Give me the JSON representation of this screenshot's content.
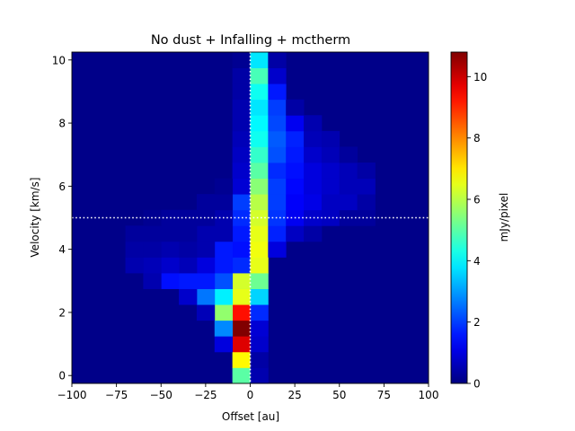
{
  "chart_data": {
    "type": "heatmap",
    "title": "No dust + Infalling + mctherm",
    "xlabel": "Offset [au]",
    "ylabel": "Velocity [km/s]",
    "colorbar_label": "mJy/pixel",
    "colormap": "jet",
    "xlim": [
      -100,
      100
    ],
    "ylim": [
      -0.25,
      10.25
    ],
    "x_ticks": [
      -100,
      -75,
      -50,
      -25,
      0,
      25,
      50,
      75,
      100
    ],
    "x_tick_labels": [
      "−100",
      "−75",
      "−50",
      "−25",
      "0",
      "25",
      "50",
      "75",
      "100"
    ],
    "y_ticks": [
      0,
      2,
      4,
      6,
      8,
      10
    ],
    "y_tick_labels": [
      "0",
      "2",
      "4",
      "6",
      "8",
      "10"
    ],
    "colorbar_ticks": [
      0,
      2,
      4,
      6,
      8,
      10
    ],
    "colorbar_tick_labels": [
      "0",
      "2",
      "4",
      "6",
      "8",
      "10"
    ],
    "vmin": 0,
    "vmax": 10.8,
    "x_bin_edges_au": [
      -100,
      100
    ],
    "x_bin_count": 20,
    "velocity_bin_start": -0.25,
    "velocity_bin_width": 0.5,
    "velocity_bin_count": 21,
    "background_value": 0.1,
    "reference_lines": {
      "systemic_velocity": 5.0,
      "zero_offset": 0
    },
    "cells_note": "each cell: x offset bin center [au], velocity bin center [km/s], intensity [mJy/pixel]",
    "cells": [
      [
        -5,
        0,
        5.0
      ],
      [
        5,
        0,
        0.5
      ],
      [
        -5,
        0.5,
        6.8
      ],
      [
        5,
        0.5,
        0.4
      ],
      [
        -5,
        1,
        9.8
      ],
      [
        -15,
        1,
        1.0
      ],
      [
        5,
        1,
        0.8
      ],
      [
        -5,
        1.5,
        10.8
      ],
      [
        -15,
        1.5,
        2.8
      ],
      [
        5,
        1.5,
        0.9
      ],
      [
        -5,
        2,
        9.3
      ],
      [
        -15,
        2,
        5.6
      ],
      [
        -25,
        2,
        0.6
      ],
      [
        5,
        2,
        1.8
      ],
      [
        -5,
        2.5,
        6.5
      ],
      [
        -15,
        2.5,
        3.9
      ],
      [
        -25,
        2.5,
        2.6
      ],
      [
        -35,
        2.5,
        0.8
      ],
      [
        5,
        2.5,
        3.6
      ],
      [
        -5,
        3,
        6.3
      ],
      [
        -15,
        3,
        2.2
      ],
      [
        -25,
        3,
        1.6
      ],
      [
        -35,
        3,
        1.6
      ],
      [
        -45,
        3,
        1.5
      ],
      [
        -55,
        3,
        0.5
      ],
      [
        5,
        3,
        5.2
      ],
      [
        -5,
        3.5,
        1.8
      ],
      [
        -15,
        3.5,
        1.6
      ],
      [
        -25,
        3.5,
        1.0
      ],
      [
        -35,
        3.5,
        0.6
      ],
      [
        -45,
        3.5,
        0.8
      ],
      [
        -55,
        3.5,
        0.6
      ],
      [
        -65,
        3.5,
        0.5
      ],
      [
        5,
        3.5,
        6.5
      ],
      [
        -5,
        4,
        1.5
      ],
      [
        -15,
        4,
        1.6
      ],
      [
        -25,
        4,
        0.5
      ],
      [
        -35,
        4,
        0.4
      ],
      [
        -45,
        4,
        0.5
      ],
      [
        -55,
        4,
        0.4
      ],
      [
        -65,
        4,
        0.4
      ],
      [
        5,
        4,
        6.6
      ],
      [
        15,
        4,
        1.0
      ],
      [
        -5,
        4.5,
        1.6
      ],
      [
        -15,
        4.5,
        0.5
      ],
      [
        -25,
        4.5,
        0.5
      ],
      [
        -35,
        4.5,
        0.3
      ],
      [
        -45,
        4.5,
        0.3
      ],
      [
        -55,
        4.5,
        0.3
      ],
      [
        -65,
        4.5,
        0.3
      ],
      [
        5,
        4.5,
        6.5
      ],
      [
        15,
        4.5,
        1.7
      ],
      [
        25,
        4.5,
        0.7
      ],
      [
        35,
        4.5,
        0.4
      ],
      [
        -5,
        5,
        1.8
      ],
      [
        -15,
        5,
        0.5
      ],
      [
        -25,
        5,
        0.3
      ],
      [
        -35,
        5,
        0.3
      ],
      [
        -45,
        5,
        0.3
      ],
      [
        -55,
        5,
        0.2
      ],
      [
        5,
        5,
        6.3
      ],
      [
        15,
        5,
        1.9
      ],
      [
        25,
        5,
        1.2
      ],
      [
        35,
        5,
        0.8
      ],
      [
        45,
        5,
        0.7
      ],
      [
        55,
        5,
        0.3
      ],
      [
        65,
        5,
        0.3
      ],
      [
        -5,
        5.5,
        2.0
      ],
      [
        -15,
        5.5,
        0.3
      ],
      [
        -25,
        5.5,
        0.3
      ],
      [
        5,
        5.5,
        6.0
      ],
      [
        15,
        5.5,
        2.0
      ],
      [
        25,
        5.5,
        1.3
      ],
      [
        35,
        5.5,
        1.1
      ],
      [
        45,
        5.5,
        0.7
      ],
      [
        55,
        5.5,
        0.7
      ],
      [
        65,
        5.5,
        0.4
      ],
      [
        -5,
        6,
        0.9
      ],
      [
        -15,
        6,
        0.2
      ],
      [
        5,
        6,
        5.5
      ],
      [
        15,
        6,
        2.0
      ],
      [
        25,
        6,
        1.4
      ],
      [
        35,
        6,
        1.0
      ],
      [
        45,
        6,
        0.8
      ],
      [
        55,
        6,
        0.6
      ],
      [
        65,
        6,
        0.6
      ],
      [
        -5,
        6.5,
        0.8
      ],
      [
        5,
        6.5,
        5.0
      ],
      [
        15,
        6.5,
        1.8
      ],
      [
        25,
        6.5,
        1.5
      ],
      [
        35,
        6.5,
        1.0
      ],
      [
        45,
        6.5,
        0.8
      ],
      [
        55,
        6.5,
        0.6
      ],
      [
        65,
        6.5,
        0.4
      ],
      [
        -5,
        7,
        0.7
      ],
      [
        5,
        7,
        4.6
      ],
      [
        15,
        7,
        2.2
      ],
      [
        25,
        7,
        1.6
      ],
      [
        35,
        7,
        0.8
      ],
      [
        45,
        7,
        0.6
      ],
      [
        55,
        7,
        0.3
      ],
      [
        -5,
        7.5,
        0.6
      ],
      [
        5,
        7.5,
        4.2
      ],
      [
        15,
        7.5,
        2.3
      ],
      [
        25,
        7.5,
        1.7
      ],
      [
        35,
        7.5,
        0.6
      ],
      [
        45,
        7.5,
        0.5
      ],
      [
        -5,
        8,
        0.5
      ],
      [
        5,
        8,
        4.0
      ],
      [
        15,
        8,
        2.1
      ],
      [
        25,
        8,
        1.2
      ],
      [
        35,
        8,
        0.5
      ],
      [
        -5,
        8.5,
        0.5
      ],
      [
        5,
        8.5,
        3.8
      ],
      [
        15,
        8.5,
        2.0
      ],
      [
        25,
        8.5,
        0.4
      ],
      [
        -5,
        9,
        0.4
      ],
      [
        5,
        9,
        4.2
      ],
      [
        15,
        9,
        1.6
      ],
      [
        -5,
        9.5,
        0.4
      ],
      [
        5,
        9.5,
        4.8
      ],
      [
        15,
        9.5,
        0.8
      ],
      [
        -5,
        10,
        0.2
      ],
      [
        5,
        10,
        3.8
      ],
      [
        15,
        10,
        0.4
      ]
    ]
  }
}
